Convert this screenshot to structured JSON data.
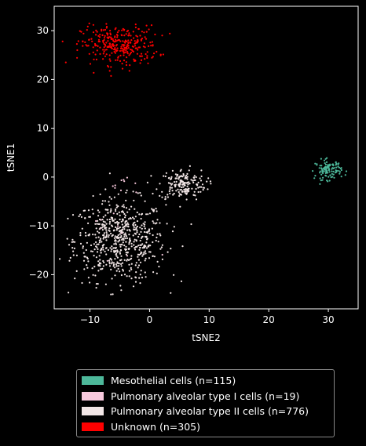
{
  "chart_data": {
    "type": "scatter",
    "title": "",
    "xlabel": "tSNE2",
    "ylabel": "tSNE1",
    "xlim": [
      -16,
      35
    ],
    "ylim": [
      -27,
      35
    ],
    "xticks": [
      -10,
      0,
      10,
      20,
      30
    ],
    "yticks": [
      -20,
      -10,
      0,
      10,
      20,
      30
    ],
    "grid": false,
    "legend_position": "below",
    "series": [
      {
        "name": "Mesothelial cells (n=115)",
        "color": "#4db89a",
        "count": 115,
        "clusters": [
          {
            "cx": 30,
            "cy": 1.5,
            "sx": 1.1,
            "sy": 1.0
          }
        ]
      },
      {
        "name": "Pulmonary alveolar type I cells (n=19)",
        "color": "#f7c8dc",
        "count": 19,
        "clusters": [
          {
            "cx": -4,
            "cy": -1.5,
            "sx": 1.2,
            "sy": 1.0
          },
          {
            "cx": -6,
            "cy": -13,
            "sx": 3,
            "sy": 4
          }
        ]
      },
      {
        "name": "Pulmonary alveolar type II cells (n=776)",
        "color": "#f2e6e6",
        "count": 776,
        "clusters": [
          {
            "cx": -5,
            "cy": -13,
            "sx": 3.8,
            "sy": 4.2
          },
          {
            "cx": 5.5,
            "cy": -1.5,
            "sx": 2.0,
            "sy": 1.6
          }
        ]
      },
      {
        "name": "Unknown (n=305)",
        "color": "#ff0000",
        "count": 305,
        "clusters": [
          {
            "cx": -5,
            "cy": 27,
            "sx": 3.2,
            "sy": 2.0
          }
        ]
      }
    ]
  }
}
